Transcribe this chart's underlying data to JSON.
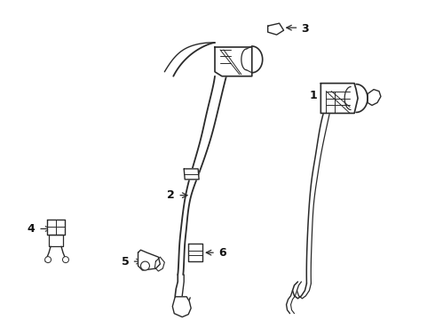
{
  "background_color": "#ffffff",
  "line_color": "#2a2a2a",
  "label_color": "#111111",
  "figsize": [
    4.9,
    3.6
  ],
  "dpi": 100
}
